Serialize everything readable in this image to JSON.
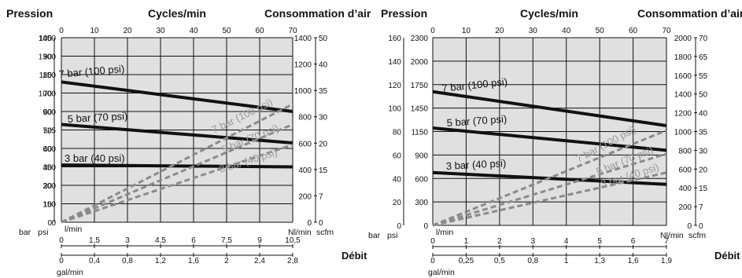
{
  "chart_data": [
    {
      "type": "line",
      "title_left": "Pression",
      "title_center": "Cycles/min",
      "title_right": "Consommation d’air",
      "debit_label": "Débit",
      "unit_bar": "bar",
      "unit_psi": "psi",
      "unit_lmin": "l/min",
      "unit_galmin": "gal/min",
      "unit_nlmin": "Nl/min",
      "unit_scfm": "scfm",
      "x_max": 70,
      "ylim": [
        0,
        100
      ],
      "cycles_ticks": [
        "0",
        "10",
        "20",
        "30",
        "40",
        "50",
        "60",
        "70"
      ],
      "bar_ticks": [
        "100",
        "90",
        "80",
        "70",
        "60",
        "50",
        "40",
        "30",
        "20",
        "10",
        "0"
      ],
      "psi_ticks": [
        "1450",
        "1300",
        "1150",
        "1000",
        "900",
        "725",
        "600",
        "450",
        "300",
        "150",
        "0"
      ],
      "nl_ticks": [
        "1400",
        "1200",
        "1000",
        "800",
        "600",
        "400",
        "200",
        "0"
      ],
      "scfm_ticks": [
        "50",
        "40",
        "35",
        "30",
        "20",
        "15",
        "7",
        "0"
      ],
      "lmin_ticks": [
        "0",
        "1,5",
        "3",
        "4,5",
        "6",
        "7,5",
        "9",
        "10,5"
      ],
      "gal_ticks": [
        "0",
        "0,4",
        "0,8",
        "1,2",
        "1,6",
        "2",
        "2,4",
        "2,8"
      ],
      "series": [
        {
          "name": "7 bar (100 psi)",
          "kind": "pressure",
          "x": [
            0,
            70
          ],
          "y": [
            76,
            60
          ]
        },
        {
          "name": "5 bar (70 psi)",
          "kind": "pressure",
          "x": [
            0,
            70
          ],
          "y": [
            53,
            43
          ]
        },
        {
          "name": "3 bar (40 psi)",
          "kind": "pressure",
          "x": [
            0,
            70
          ],
          "y": [
            31,
            30
          ]
        },
        {
          "name": "7 bar (100 psi)",
          "kind": "air",
          "x": [
            0,
            70
          ],
          "y": [
            0,
            64
          ]
        },
        {
          "name": "5 bar (70 psi)",
          "kind": "air",
          "x": [
            0,
            70
          ],
          "y": [
            0,
            53
          ]
        },
        {
          "name": "3 bar (40 psi)",
          "kind": "air",
          "x": [
            0,
            70
          ],
          "y": [
            0,
            42
          ]
        }
      ]
    },
    {
      "type": "line",
      "title_left": "Pression",
      "title_center": "Cycles/min",
      "title_right": "Consommation d’air",
      "debit_label": "Débit",
      "unit_bar": "bar",
      "unit_psi": "psi",
      "unit_lmin": "l/min",
      "unit_galmin": "gal/min",
      "unit_nlmin": "Nl/min",
      "unit_scfm": "scfm",
      "x_max": 70,
      "ylim": [
        0,
        160
      ],
      "cycles_ticks": [
        "0",
        "10",
        "20",
        "30",
        "40",
        "50",
        "60",
        "70"
      ],
      "bar_ticks": [
        "160",
        "140",
        "120",
        "100",
        "80",
        "60",
        "40",
        "20",
        "0"
      ],
      "psi_ticks": [
        "2300",
        "2000",
        "1750",
        "1450",
        "1150",
        "900",
        "600",
        "300",
        "0"
      ],
      "nl_ticks": [
        "2000",
        "1800",
        "1600",
        "1400",
        "1200",
        "1000",
        "800",
        "600",
        "400",
        "200",
        "0"
      ],
      "scfm_ticks": [
        "70",
        "65",
        "55",
        "50",
        "40",
        "35",
        "30",
        "20",
        "15",
        "7",
        "0"
      ],
      "lmin_ticks": [
        "0",
        "1",
        "2",
        "3",
        "4",
        "5",
        "6",
        "7"
      ],
      "gal_ticks": [
        "0",
        "0,25",
        "0,5",
        "0,8",
        "1",
        "1,3",
        "1,6",
        "1,9"
      ],
      "series": [
        {
          "name": "7 bar (100 psi)",
          "kind": "pressure",
          "x": [
            0,
            70
          ],
          "y": [
            114,
            85
          ]
        },
        {
          "name": "5 bar (70 psi)",
          "kind": "pressure",
          "x": [
            0,
            70
          ],
          "y": [
            83,
            64
          ]
        },
        {
          "name": "3 bar (40 psi)",
          "kind": "pressure",
          "x": [
            0,
            70
          ],
          "y": [
            45,
            35
          ]
        },
        {
          "name": "7 bar (100 psi)",
          "kind": "air",
          "x": [
            0,
            70
          ],
          "y": [
            0,
            81
          ]
        },
        {
          "name": "5 bar (70 psi)",
          "kind": "air",
          "x": [
            0,
            70
          ],
          "y": [
            0,
            61
          ]
        },
        {
          "name": "3 bar (40 psi)",
          "kind": "air",
          "x": [
            0,
            70
          ],
          "y": [
            0,
            45
          ]
        }
      ]
    }
  ]
}
